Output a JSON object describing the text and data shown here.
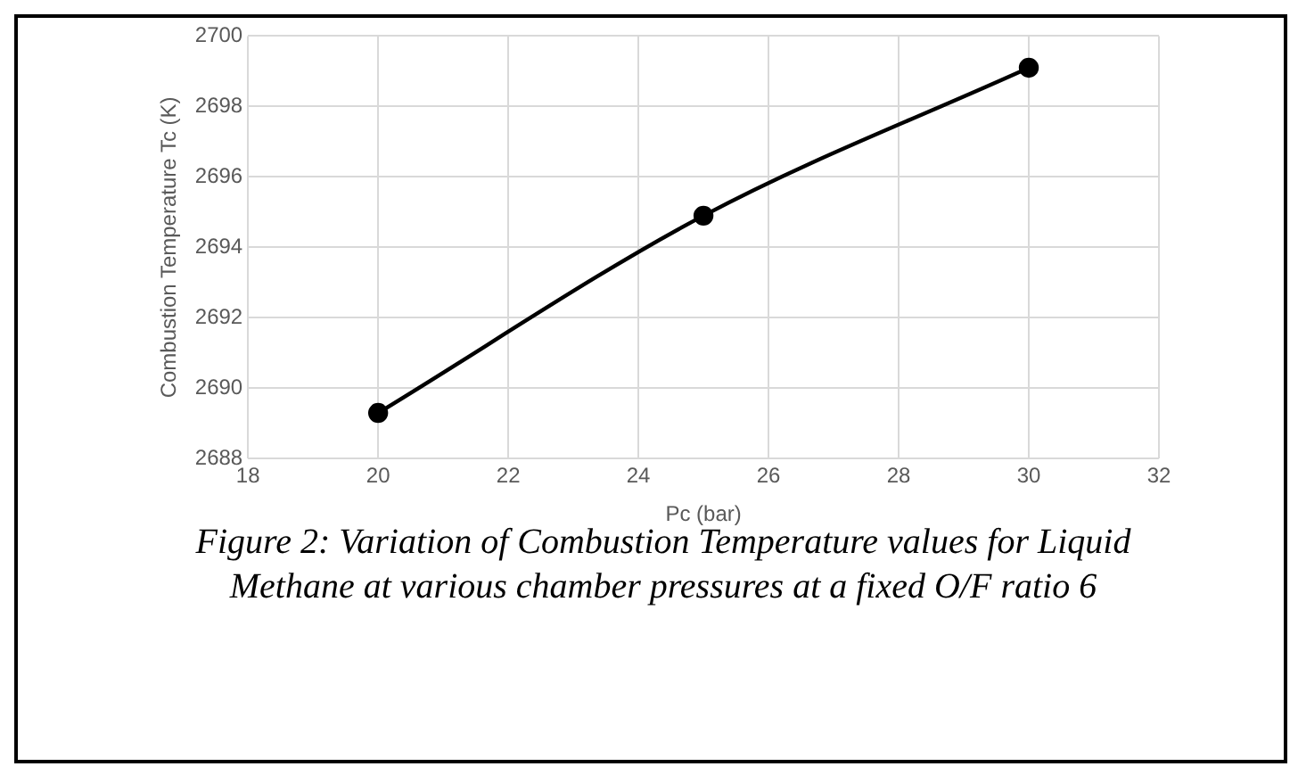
{
  "chart_data": {
    "type": "line",
    "xlabel": "Pc (bar)",
    "ylabel": "Combustion Temperature Tc (K)",
    "x": [
      20,
      25,
      30
    ],
    "series": [
      {
        "color": "#000000",
        "values": [
          2689.3,
          2694.9,
          2699.1
        ]
      }
    ],
    "xlim": [
      18,
      32
    ],
    "xticks": [
      18,
      20,
      22,
      24,
      26,
      28,
      30,
      32
    ],
    "ylim": [
      2688,
      2700
    ],
    "yticks": [
      2688,
      2690,
      2692,
      2694,
      2696,
      2698,
      2700
    ],
    "grid": true,
    "legend": false,
    "marker": "circle",
    "line_style": "solid",
    "annotations": [
      "Figure 2: Variation of Combustion Temperature values for Liquid Methane at various chamber pressures at a fixed O/F ratio 6"
    ]
  }
}
